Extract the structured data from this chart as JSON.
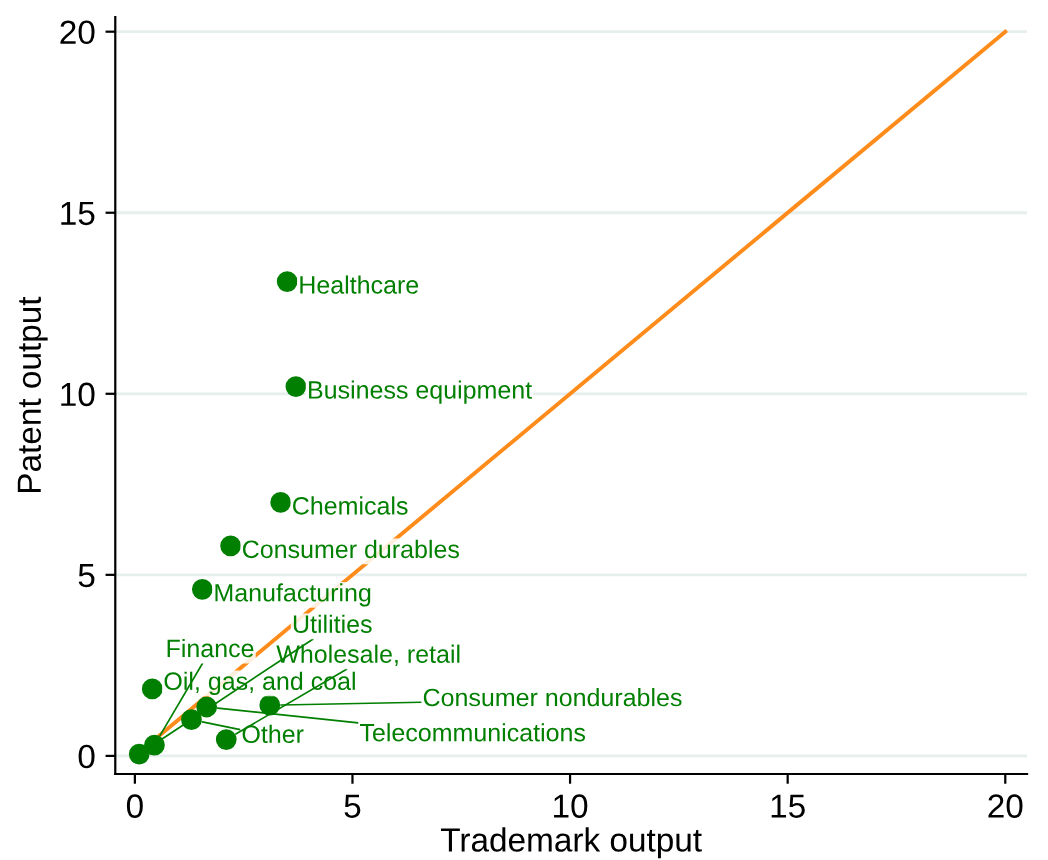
{
  "chart_data": {
    "type": "scatter",
    "xlabel": "Trademark output",
    "ylabel": "Patent output",
    "xlim": [
      -0.45,
      20.5
    ],
    "ylim": [
      -0.5,
      20.4
    ],
    "xticks": [
      0,
      5,
      10,
      15,
      20
    ],
    "yticks": [
      0,
      5,
      10,
      15,
      20
    ],
    "grid": "y",
    "legend": false,
    "marker": "circle",
    "series": [
      {
        "type": "scatter",
        "color": "#007f00",
        "x": [
          3.5,
          3.7,
          3.35,
          2.2,
          1.55,
          0.4,
          1.65,
          3.1,
          1.3,
          0.45,
          2.1,
          0.1
        ],
        "values": [
          13.1,
          10.2,
          7.0,
          5.8,
          4.6,
          1.85,
          1.35,
          1.4,
          1.0,
          0.3,
          0.45,
          0.05
        ]
      },
      {
        "type": "line",
        "color": "#ff8c1a",
        "x": [
          0,
          20
        ],
        "values": [
          0,
          20
        ],
        "marker": "none",
        "line_style": "solid"
      }
    ],
    "annotations": [
      {
        "text": "Healthcare",
        "x": 3.5,
        "y": 13.1
      },
      {
        "text": "Business equipment",
        "x": 3.7,
        "y": 10.2
      },
      {
        "text": "Chemicals",
        "x": 3.35,
        "y": 7.0
      },
      {
        "text": "Consumer durables",
        "x": 2.2,
        "y": 5.8
      },
      {
        "text": "Manufacturing",
        "x": 1.55,
        "y": 4.6
      },
      {
        "text": "Oil, gas, and coal",
        "x": 0.4,
        "y": 1.85
      },
      {
        "text": "Telecommunications",
        "x": 1.65,
        "y": 1.35
      },
      {
        "text": "Consumer nondurables",
        "x": 3.1,
        "y": 1.4
      },
      {
        "text": "Other",
        "x": 1.3,
        "y": 1.0
      },
      {
        "text": "Finance",
        "x": 0.45,
        "y": 0.3
      },
      {
        "text": "Wholesale, retail",
        "x": 2.1,
        "y": 0.45
      },
      {
        "text": "Utilities",
        "x": 0.1,
        "y": 0.05
      }
    ]
  }
}
